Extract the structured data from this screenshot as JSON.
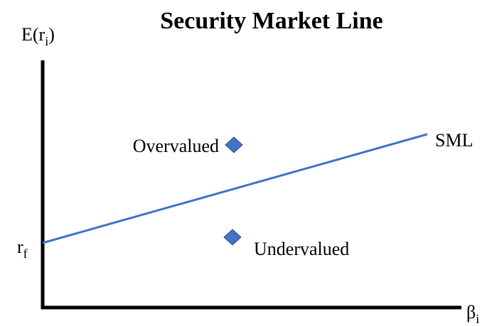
{
  "title": "Security Market Line",
  "y_axis": {
    "label": "E(r",
    "subscript": "i",
    "suffix": ")"
  },
  "x_axis": {
    "label": "β",
    "subscript": "i"
  },
  "intercept": {
    "label": "r",
    "subscript": "f"
  },
  "line": {
    "label": "SML"
  },
  "points": [
    {
      "label": "Overvalued"
    },
    {
      "label": "Undervalued"
    }
  ]
}
